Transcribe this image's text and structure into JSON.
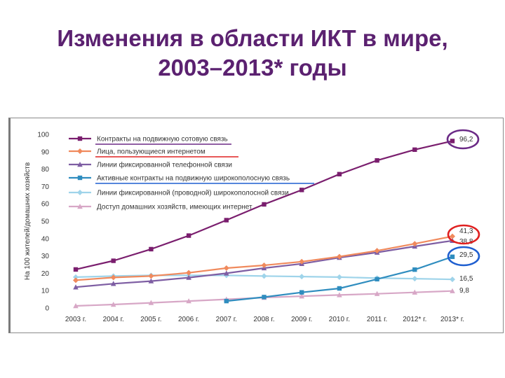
{
  "title_line1": "Изменения в области ИКТ в мире,",
  "title_line2": "2003–2013* годы",
  "chart_data": {
    "type": "line",
    "ylabel": "На 100 жителей/домашних хозяйств",
    "xlabel": "",
    "ylim": [
      0,
      100
    ],
    "yticks": [
      0,
      10,
      20,
      30,
      40,
      50,
      60,
      70,
      80,
      90,
      100
    ],
    "categories": [
      "2003 г.",
      "2004 г.",
      "2005 г.",
      "2006 г.",
      "2007 г.",
      "2008 г.",
      "2009 г.",
      "2010 г.",
      "2011 г.",
      "2012* г.",
      "2013* г."
    ],
    "grid": false,
    "legend_position": "top-left",
    "series": [
      {
        "name": "Контракты на подвижную сотовую связь",
        "color": "#7a1e6e",
        "marker": "square",
        "values": [
          22.2,
          27.2,
          33.9,
          41.7,
          50.6,
          59.7,
          68.0,
          77.1,
          85.0,
          91.2,
          96.2
        ],
        "end_label": "96,2"
      },
      {
        "name": "Лица, пользующиеся интернетом",
        "color": "#f08a5d",
        "marker": "diamond",
        "values": [
          16.0,
          17.6,
          18.4,
          20.3,
          23.0,
          24.6,
          26.7,
          29.6,
          33.0,
          37.0,
          41.3
        ],
        "end_label": "41,3"
      },
      {
        "name": "Линии фиксированной телефонной связи",
        "color": "#7e5ea3",
        "marker": "triangle",
        "values": [
          12.0,
          14.0,
          15.5,
          17.5,
          20.0,
          23.0,
          25.5,
          29.0,
          32.0,
          35.5,
          38.8
        ],
        "end_label": "38,8"
      },
      {
        "name": "Активные контракты на подвижную широкополосную связь",
        "color": "#2f8dbf",
        "marker": "square",
        "values": [
          null,
          null,
          null,
          null,
          4.0,
          6.3,
          9.0,
          11.3,
          16.6,
          22.1,
          29.5
        ],
        "end_label": "29,5"
      },
      {
        "name": "Линии фиксированной (проводной) широкополосной связи",
        "color": "#9fd4ea",
        "marker": "diamond",
        "values": [
          17.8,
          18.4,
          18.8,
          18.8,
          18.8,
          18.4,
          18.1,
          17.8,
          17.2,
          16.9,
          16.5
        ],
        "end_label": "16,5"
      },
      {
        "name": "Доступ домашних хозяйств, имеющих интернет",
        "color": "#d7a7c6",
        "marker": "triangle",
        "values": [
          1.2,
          2.0,
          3.0,
          4.0,
          5.0,
          6.0,
          6.8,
          7.5,
          8.2,
          9.0,
          9.8
        ],
        "end_label": "9,8"
      }
    ],
    "highlights": [
      {
        "series": 0,
        "color": "#6b2a86"
      },
      {
        "series": 1,
        "color": "#e02020"
      },
      {
        "series": 3,
        "color": "#1f5fd0"
      }
    ]
  }
}
